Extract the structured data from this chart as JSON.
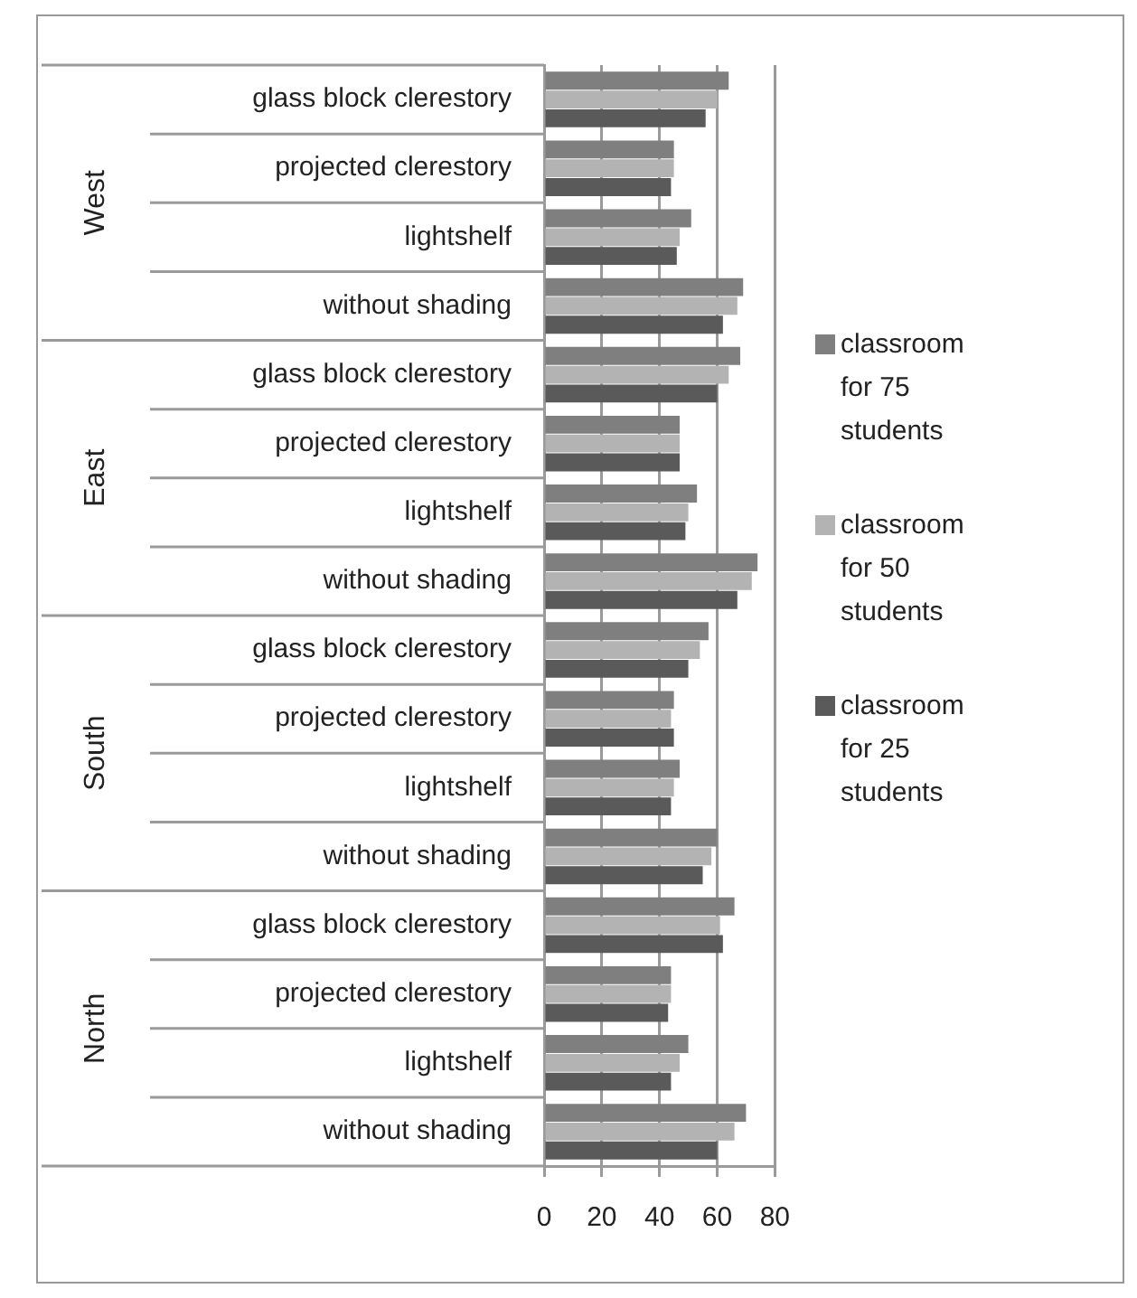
{
  "chart_data": {
    "type": "bar",
    "orientation": "horizontal",
    "categories": [
      "glass block clerestory",
      "projected clerestory",
      "lightshelf",
      "without shading",
      "glass block clerestory",
      "projected clerestory",
      "lightshelf",
      "without shading",
      "glass block clerestory",
      "projected clerestory",
      "lightshelf",
      "without shading",
      "glass block clerestory",
      "projected clerestory",
      "lightshelf",
      "without shading"
    ],
    "annotations": [
      "West",
      "East",
      "South",
      "North"
    ],
    "series": [
      {
        "name": "classroom for 75 students",
        "color": "#7f7f7f",
        "values": [
          64,
          45,
          51,
          69,
          68,
          47,
          53,
          74,
          57,
          45,
          47,
          60,
          66,
          44,
          50,
          70
        ]
      },
      {
        "name": "classroom for 50 students",
        "color": "#b3b3b3",
        "values": [
          60,
          45,
          47,
          67,
          64,
          47,
          50,
          72,
          54,
          44,
          45,
          58,
          61,
          44,
          47,
          66
        ]
      },
      {
        "name": "classroom for 25 students",
        "color": "#5a5a5a",
        "values": [
          56,
          44,
          46,
          62,
          60,
          47,
          49,
          67,
          50,
          45,
          44,
          55,
          62,
          43,
          44,
          60
        ]
      }
    ],
    "xlim": [
      0,
      80
    ],
    "xticks": [
      0,
      20,
      40,
      60,
      80
    ],
    "grid": "x",
    "legend": "right"
  }
}
